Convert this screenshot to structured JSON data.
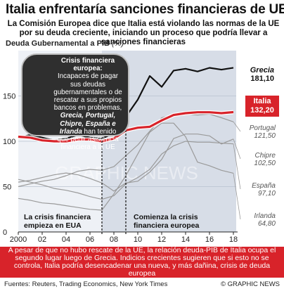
{
  "header": {
    "title": "Italia enfrentaría sanciones financieras de UE",
    "subtitle": "La Comisión Europea dice que Italia está violando las normas de la UE por su deuda creciente, iniciando un proceso que podría llevar a sanciones financieras",
    "yunit_label": "Deuda Gubernamental a PIB",
    "yunit_suffix": "(%)"
  },
  "callout": {
    "title": "Crisis financiera europea:",
    "text_before": "Incapaces de pagar sus deudas gubernamentales o de rescatar a sus propios bancos en problemas,",
    "countries": "Grecia, Portugal, Chipre, España e Irlanda",
    "text_after": "han tenido que pedir asistencia financiera a la UE"
  },
  "notes": {
    "left": "La crisis financiera empieza en EUA",
    "right": "Comienza la crisis financiera europea"
  },
  "labels": {
    "grecia_name": "Grecia",
    "grecia_value": "181,10",
    "italia_name": "Italia",
    "italia_value": "132,20",
    "portugal_name": "Portugal",
    "portugal_value": "121,50",
    "chipre_name": "Chipre",
    "chipre_value": "102,50",
    "espana_name": "España",
    "espana_value": "97,10",
    "irlanda_name": "Irlanda",
    "irlanda_value": "64,80"
  },
  "footer": {
    "highlight": "A pesar de que no hubo rescate de la UE, la relación deuda-PIB de Italia ocupa el segundo lugar luego de Grecia. Indicios crecientes sugieren que si esto no se controla, Italia podría desencadenar una nueva, y más dañina, crisis de deuda europea",
    "source": "Fuentes: Reuters, Trading Economics, New York Times",
    "credit": "© GRAPHIC NEWS"
  },
  "watermark": "GRAPHIC NEWS",
  "colors": {
    "italia": "#d8232a",
    "grecia": "#111111",
    "others": "#9a9a9a",
    "shade": "#d7dde7"
  },
  "chart_data": {
    "type": "line",
    "ylim": [
      0,
      200
    ],
    "xlim": [
      2000,
      2018
    ],
    "yticks": [
      0,
      50,
      100,
      150
    ],
    "xtick_labels": [
      "2000",
      "02",
      "04",
      "06",
      "08",
      "10",
      "12",
      "14",
      "16",
      "18"
    ],
    "xticks": [
      2000,
      2002,
      2004,
      2006,
      2008,
      2010,
      2012,
      2014,
      2016,
      2018
    ],
    "shaded_period": [
      2007,
      2018
    ],
    "markers": [
      2007,
      2009
    ],
    "series": [
      {
        "name": "Grecia",
        "x": [
          2000,
          2001,
          2002,
          2003,
          2004,
          2005,
          2006,
          2007,
          2008,
          2009,
          2010,
          2011,
          2012,
          2013,
          2014,
          2015,
          2016,
          2017,
          2018
        ],
        "values": [
          104,
          107,
          104,
          101,
          103,
          107,
          104,
          103,
          109,
          127,
          146,
          172,
          160,
          178,
          180,
          177,
          181,
          179,
          181.1
        ]
      },
      {
        "name": "Italia",
        "x": [
          2000,
          2001,
          2002,
          2003,
          2004,
          2005,
          2006,
          2007,
          2008,
          2009,
          2010,
          2011,
          2012,
          2013,
          2014,
          2015,
          2016,
          2017,
          2018
        ],
        "values": [
          105,
          104,
          101,
          100,
          100,
          102,
          102,
          100,
          103,
          112,
          115,
          116,
          123,
          129,
          131,
          132,
          132,
          131,
          132.2
        ]
      },
      {
        "name": "Portugal",
        "x": [
          2000,
          2001,
          2002,
          2003,
          2004,
          2005,
          2006,
          2007,
          2008,
          2009,
          2010,
          2011,
          2012,
          2013,
          2014,
          2015,
          2016,
          2017,
          2018
        ],
        "values": [
          50,
          53,
          56,
          58,
          62,
          67,
          69,
          68,
          72,
          84,
          96,
          111,
          126,
          129,
          130,
          129,
          130,
          126,
          121.5
        ]
      },
      {
        "name": "Chipre",
        "x": [
          2000,
          2001,
          2002,
          2003,
          2004,
          2005,
          2006,
          2007,
          2008,
          2009,
          2010,
          2011,
          2012,
          2013,
          2014,
          2015,
          2016,
          2017,
          2018
        ],
        "values": [
          55,
          57,
          60,
          63,
          65,
          63,
          59,
          54,
          45,
          54,
          56,
          66,
          80,
          103,
          108,
          108,
          106,
          97,
          102.5
        ]
      },
      {
        "name": "España",
        "x": [
          2000,
          2001,
          2002,
          2003,
          2004,
          2005,
          2006,
          2007,
          2008,
          2009,
          2010,
          2011,
          2012,
          2013,
          2014,
          2015,
          2016,
          2017,
          2018
        ],
        "values": [
          58,
          55,
          52,
          48,
          46,
          43,
          39,
          36,
          40,
          53,
          60,
          69,
          86,
          95,
          100,
          99,
          99,
          98,
          97.1
        ]
      },
      {
        "name": "Irlanda",
        "x": [
          2000,
          2001,
          2002,
          2003,
          2004,
          2005,
          2006,
          2007,
          2008,
          2009,
          2010,
          2011,
          2012,
          2013,
          2014,
          2015,
          2016,
          2017,
          2018
        ],
        "values": [
          37,
          35,
          32,
          31,
          29,
          27,
          25,
          24,
          42,
          62,
          86,
          110,
          120,
          120,
          105,
          77,
          73,
          68,
          64.8
        ]
      }
    ]
  }
}
